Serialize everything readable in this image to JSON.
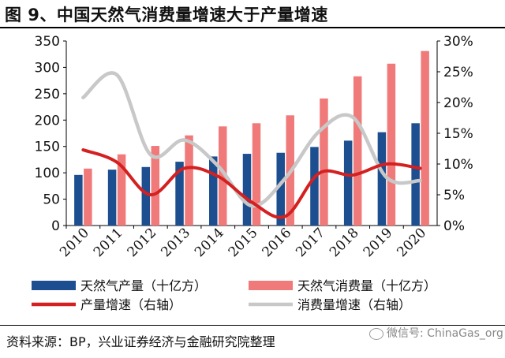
{
  "title": "图 9、中国天然气消费量增速大于产量增速",
  "source": "资料来源：BP，兴业证券经济与金融研究院整理",
  "watermark": "微信号: ChinaGas_org",
  "colors": {
    "production_bar": "#1d4e8f",
    "consumption_bar": "#f07a7a",
    "production_growth_line": "#d42020",
    "consumption_growth_line": "#c8c8c8"
  },
  "chart_data": {
    "type": "bar",
    "categories": [
      "2010",
      "2011",
      "2012",
      "2013",
      "2014",
      "2015",
      "2016",
      "2017",
      "2018",
      "2019",
      "2020"
    ],
    "series": [
      {
        "name": "天然气产量（十亿方）",
        "kind": "bar",
        "axis": "left",
        "values": [
          96,
          106,
          111,
          121,
          131,
          136,
          138,
          149,
          161,
          177,
          194
        ]
      },
      {
        "name": "天然气消费量（十亿方）",
        "kind": "bar",
        "axis": "left",
        "values": [
          108,
          135,
          151,
          171,
          188,
          194,
          209,
          241,
          283,
          307,
          331
        ]
      },
      {
        "name": "产量增速（右轴）",
        "kind": "line",
        "axis": "right",
        "values": [
          12.3,
          10.3,
          5.0,
          9.3,
          8.0,
          3.8,
          1.5,
          8.5,
          8.2,
          10.0,
          9.3
        ]
      },
      {
        "name": "消费量增速（右轴）",
        "kind": "line",
        "axis": "right",
        "values": [
          20.8,
          24.5,
          11.5,
          13.9,
          9.7,
          3.2,
          7.7,
          15.3,
          17.6,
          7.8,
          7.3
        ]
      }
    ],
    "y_left": {
      "min": 0,
      "max": 350,
      "ticks": [
        "0",
        "50",
        "100",
        "150",
        "200",
        "250",
        "300",
        "350"
      ]
    },
    "y_right": {
      "min": 0,
      "max": 30,
      "ticks": [
        "0%",
        "5%",
        "10%",
        "15%",
        "20%",
        "25%",
        "30%"
      ]
    },
    "grid": false,
    "legend_position": "bottom"
  }
}
